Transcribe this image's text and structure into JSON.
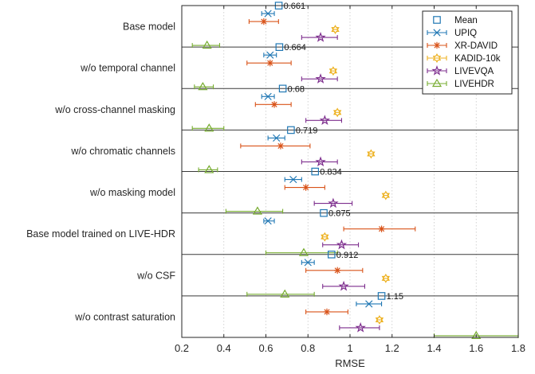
{
  "chart_data": {
    "type": "errorbar",
    "xlabel": "RMSE",
    "xlim": [
      0.2,
      1.8
    ],
    "xticks": [
      "0.2",
      "0.4",
      "0.6",
      "0.8",
      "1",
      "1.2",
      "1.4",
      "1.6",
      "1.8"
    ],
    "grid": "vertical dotted",
    "legend_position": "top-right",
    "categories": [
      "Base model",
      "w/o temporal channel",
      "w/o cross-channel masking",
      "w/o chromatic channels",
      "w/o masking model",
      "Base model trained on LIVE-HDR",
      "w/o CSF",
      "w/o contrast saturation"
    ],
    "mean": {
      "name": "Mean",
      "color": "#1f77b4",
      "marker": "square",
      "values": [
        0.661,
        0.664,
        0.68,
        0.719,
        0.834,
        0.875,
        0.912,
        1.15
      ],
      "labels": [
        "0.661",
        "0.664",
        "0.68",
        "0.719",
        "0.834",
        "0.875",
        "0.912",
        "1.15"
      ]
    },
    "series": [
      {
        "name": "UPIQ",
        "color": "#1f77b4",
        "marker": "x",
        "values": [
          0.61,
          0.62,
          0.61,
          0.65,
          0.73,
          0.61,
          0.8,
          1.09
        ],
        "lower": [
          0.58,
          0.59,
          0.58,
          0.61,
          0.69,
          0.59,
          0.77,
          1.03
        ],
        "upper": [
          0.64,
          0.65,
          0.64,
          0.69,
          0.77,
          0.64,
          0.83,
          1.15
        ]
      },
      {
        "name": "XR-DAVID",
        "color": "#d95319",
        "marker": "asterisk",
        "values": [
          0.59,
          0.62,
          0.64,
          0.67,
          0.79,
          1.15,
          0.94,
          0.89
        ],
        "lower": [
          0.52,
          0.51,
          0.55,
          0.48,
          0.69,
          0.97,
          0.79,
          0.79
        ],
        "upper": [
          0.66,
          0.72,
          0.72,
          0.81,
          0.88,
          1.31,
          1.06,
          0.99
        ]
      },
      {
        "name": "KADID-10k",
        "color": "#edb120",
        "marker": "hexagram",
        "values": [
          0.93,
          0.92,
          0.94,
          1.1,
          1.17,
          0.88,
          1.17,
          1.14
        ],
        "lower": [
          0.92,
          0.91,
          0.93,
          1.09,
          1.16,
          0.87,
          1.16,
          1.13
        ],
        "upper": [
          0.94,
          0.93,
          0.95,
          1.11,
          1.18,
          0.89,
          1.18,
          1.15
        ]
      },
      {
        "name": "LIVEVQA",
        "color": "#7e2f8e",
        "marker": "pentagram",
        "values": [
          0.86,
          0.86,
          0.88,
          0.86,
          0.92,
          0.96,
          0.97,
          1.05
        ],
        "lower": [
          0.77,
          0.77,
          0.79,
          0.77,
          0.83,
          0.87,
          0.87,
          0.95
        ],
        "upper": [
          0.94,
          0.94,
          0.96,
          0.94,
          1.01,
          1.04,
          1.07,
          1.14
        ]
      },
      {
        "name": "LIVEHDR",
        "color": "#77ac30",
        "marker": "triangle",
        "values": [
          0.32,
          0.3,
          0.33,
          0.33,
          0.56,
          0.78,
          0.69,
          1.6
        ],
        "lower": [
          0.25,
          0.26,
          0.25,
          0.28,
          0.41,
          0.6,
          0.51,
          1.4
        ],
        "upper": [
          0.38,
          0.35,
          0.4,
          0.37,
          0.68,
          0.94,
          0.83,
          1.8
        ]
      }
    ]
  }
}
